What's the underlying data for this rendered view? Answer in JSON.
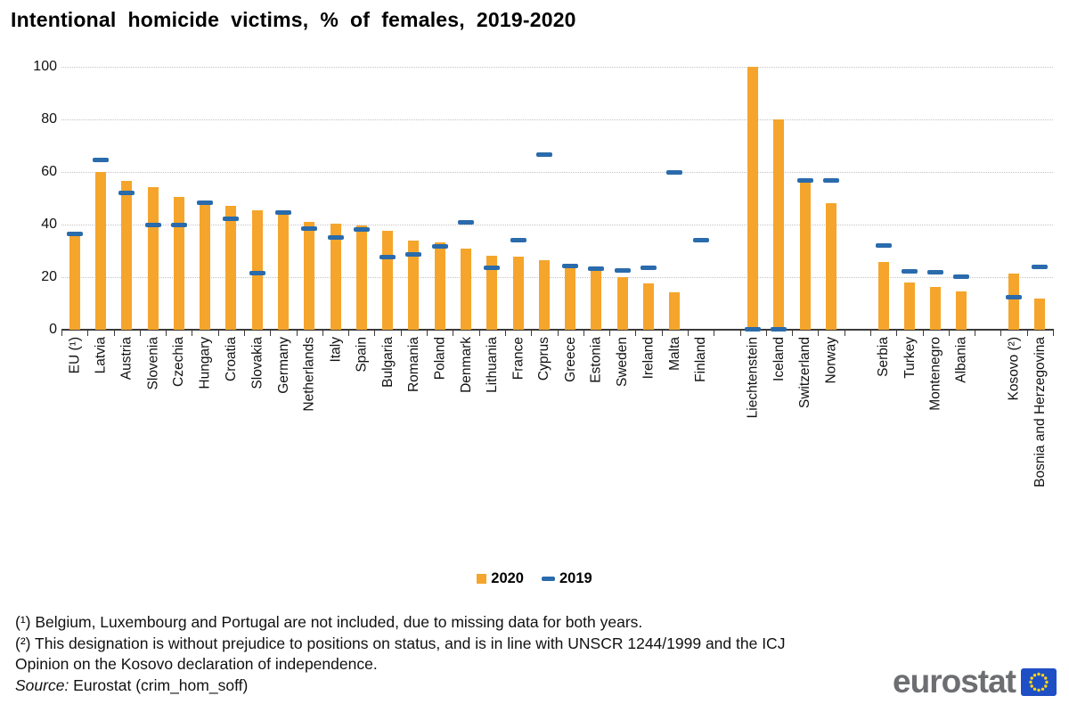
{
  "title": "Intentional homicide victims, % of females, 2019-2020",
  "legend": {
    "items": [
      {
        "label": "2020",
        "marker": "bar-square",
        "color": "#F5A52B"
      },
      {
        "label": "2019",
        "marker": "dash",
        "color": "#2A6BAC"
      }
    ]
  },
  "footnotes": {
    "line1": "(¹) Belgium, Luxembourg and Portugal are not included, due to missing data for both years.",
    "line2": "(²) This designation is without prejudice to positions on status, and is in line with UNSCR 1244/1999 and the ICJ",
    "line3": "Opinion on the Kosovo declaration of independence."
  },
  "source": {
    "prefix": "Source:",
    "text": " Eurostat (crim_hom_soff)"
  },
  "logo": {
    "text": "eurostat",
    "flag_blue": "#1E4FC4",
    "star_yellow": "#FFD617"
  },
  "chart_data": {
    "type": "bar",
    "title": "Intentional homicide victims, % of females, 2019-2020",
    "xlabel": "",
    "ylabel": "",
    "ylim": [
      0,
      100
    ],
    "yticks": [
      0,
      20,
      40,
      60,
      80,
      100
    ],
    "grid": "horizontal-dotted",
    "legend_position": "bottom-center",
    "series": [
      {
        "name": "2020",
        "style": "bar",
        "color": "#F5A52B"
      },
      {
        "name": "2019",
        "style": "dash-marker",
        "color": "#2A6BAC"
      }
    ],
    "slots": [
      {
        "label": "EU (¹)",
        "y2020": 35.5,
        "y2019": 36.5
      },
      {
        "label": "Latvia",
        "y2020": 60,
        "y2019": 64.5
      },
      {
        "label": "Austria",
        "y2020": 56.5,
        "y2019": 52
      },
      {
        "label": "Slovenia",
        "y2020": 54.3,
        "y2019": 40
      },
      {
        "label": "Czechia",
        "y2020": 50.5,
        "y2019": 40
      },
      {
        "label": "Hungary",
        "y2020": 47.5,
        "y2019": 48.4
      },
      {
        "label": "Croatia",
        "y2020": 47.2,
        "y2019": 42.3
      },
      {
        "label": "Slovakia",
        "y2020": 45.5,
        "y2019": 21.5
      },
      {
        "label": "Germany",
        "y2020": 44.4,
        "y2019": 44.7
      },
      {
        "label": "Netherlands",
        "y2020": 41,
        "y2019": 38.5
      },
      {
        "label": "Italy",
        "y2020": 40.5,
        "y2019": 35
      },
      {
        "label": "Spain",
        "y2020": 39.8,
        "y2019": 38.2
      },
      {
        "label": "Bulgaria",
        "y2020": 37.6,
        "y2019": 27.7
      },
      {
        "label": "Romania",
        "y2020": 34,
        "y2019": 28.8
      },
      {
        "label": "Poland",
        "y2020": 33.1,
        "y2019": 31.6
      },
      {
        "label": "Denmark",
        "y2020": 31,
        "y2019": 40.9
      },
      {
        "label": "Lithuania",
        "y2020": 28.2,
        "y2019": 23.5
      },
      {
        "label": "France",
        "y2020": 27.7,
        "y2019": 34.1
      },
      {
        "label": "Cyprus",
        "y2020": 26.5,
        "y2019": 66.5
      },
      {
        "label": "Greece",
        "y2020": 23.5,
        "y2019": 24.4
      },
      {
        "label": "Estonia",
        "y2020": 22.4,
        "y2019": 23.2
      },
      {
        "label": "Sweden",
        "y2020": 19.9,
        "y2019": 22.5
      },
      {
        "label": "Ireland",
        "y2020": 17.6,
        "y2019": 23.7
      },
      {
        "label": "Malta",
        "y2020": 14.4,
        "y2019": 60
      },
      {
        "label": "Finland",
        "y2020": null,
        "y2019": 33.9
      },
      null,
      {
        "label": "Liechtenstein",
        "y2020": 100,
        "y2019": 0.3
      },
      {
        "label": "Iceland",
        "y2020": 80,
        "y2019": 0.3
      },
      {
        "label": "Switzerland",
        "y2020": 56,
        "y2019": 56.7
      },
      {
        "label": "Norway",
        "y2020": 48,
        "y2019": 56.8
      },
      null,
      {
        "label": "Serbia",
        "y2020": 25.6,
        "y2019": 32.2
      },
      {
        "label": "Turkey",
        "y2020": 17.9,
        "y2019": 22.3
      },
      {
        "label": "Montenegro",
        "y2020": 16.2,
        "y2019": 21.7
      },
      {
        "label": "Albania",
        "y2020": 14.5,
        "y2019": 20.1
      },
      null,
      {
        "label": "Kosovo (²)",
        "y2020": 21.5,
        "y2019": 12.3
      },
      {
        "label": "Bosnia and Herzegovina",
        "y2020": 11.8,
        "y2019": 23.8
      }
    ]
  }
}
